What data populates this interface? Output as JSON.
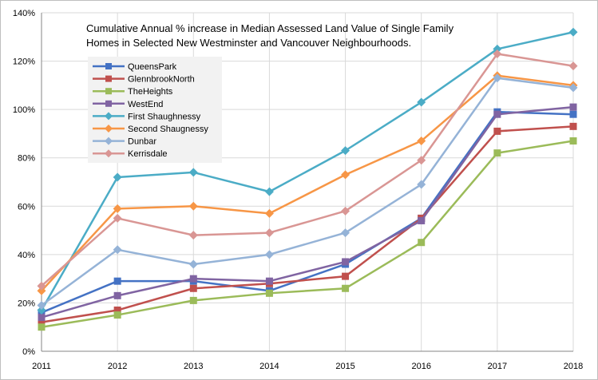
{
  "chart_data": {
    "type": "line",
    "title_lines": [
      "Cumulative Annual % increase in Median Assessed Land Value of Single Family",
      "Homes in Selected New Westminster and Vancouver Neighbourhoods."
    ],
    "x": [
      "2011",
      "2012",
      "2013",
      "2014",
      "2015",
      "2016",
      "2017",
      "2018"
    ],
    "y_ticks": [
      "0%",
      "20%",
      "40%",
      "60%",
      "80%",
      "100%",
      "120%",
      "140%"
    ],
    "ylim": [
      0,
      140
    ],
    "grid": true,
    "legend_position": "upper-left",
    "series": [
      {
        "name": "QueensPark",
        "color": "#4472C4",
        "marker": "square",
        "values": [
          16,
          29,
          29,
          25,
          36,
          55,
          99,
          98
        ]
      },
      {
        "name": "GlennbrookNorth",
        "color": "#C0504D",
        "marker": "square",
        "values": [
          12,
          17,
          26,
          28,
          31,
          55,
          91,
          93
        ]
      },
      {
        "name": "TheHeights",
        "color": "#9BBB59",
        "marker": "square",
        "values": [
          10,
          15,
          21,
          24,
          26,
          45,
          82,
          87
        ]
      },
      {
        "name": "WestEnd",
        "color": "#8064A2",
        "marker": "square",
        "values": [
          14,
          23,
          30,
          29,
          37,
          54,
          98,
          101
        ]
      },
      {
        "name": "First Shaughnessy",
        "color": "#4BACC6",
        "marker": "diamond",
        "values": [
          17,
          72,
          74,
          66,
          83,
          103,
          125,
          132
        ]
      },
      {
        "name": "Second Shaugnessy",
        "color": "#F79646",
        "marker": "diamond",
        "values": [
          25,
          59,
          60,
          57,
          73,
          87,
          114,
          110
        ]
      },
      {
        "name": "Dunbar",
        "color": "#95B3D7",
        "marker": "diamond",
        "values": [
          19,
          42,
          36,
          40,
          49,
          69,
          113,
          109
        ]
      },
      {
        "name": "Kerrisdale",
        "color": "#D99694",
        "marker": "diamond",
        "values": [
          27,
          55,
          48,
          49,
          58,
          79,
          123,
          118
        ]
      }
    ]
  }
}
